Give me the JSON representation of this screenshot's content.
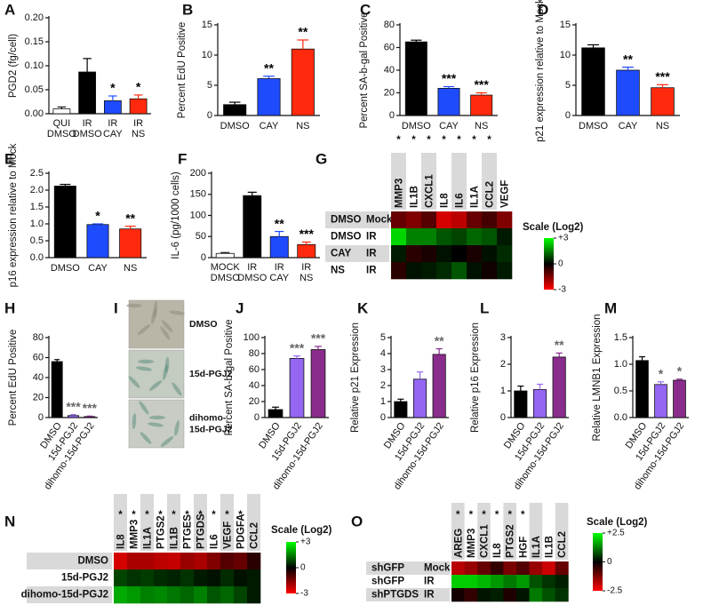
{
  "chart_data": [
    {
      "type": "bar",
      "panel": "A",
      "ylabel": "PGD2 (fg/cell)",
      "categories": [
        [
          "QUI",
          "DMSO"
        ],
        [
          "IR",
          "DMSO"
        ],
        [
          "IR",
          "CAY"
        ],
        [
          "IR",
          "NS"
        ]
      ],
      "values": [
        0.01,
        0.087,
        0.027,
        0.031
      ],
      "errors": [
        0.004,
        0.028,
        0.01,
        0.008
      ],
      "colors": [
        "#ffffff",
        "#000000",
        "#1f4bff",
        "#ff2a0d"
      ],
      "annotations": [
        null,
        null,
        "*",
        "*"
      ],
      "annotation_color": "#000000",
      "ylim": [
        0,
        0.2
      ],
      "yticks": [
        {
          "value": 0,
          "label": "0.00"
        },
        {
          "value": 0.05,
          "label": "0.05"
        },
        {
          "value": 0.1,
          "label": "0.10"
        },
        {
          "value": 0.15,
          "label": "0.15"
        },
        {
          "value": 0.2,
          "label": "0.20"
        }
      ]
    },
    {
      "type": "bar",
      "panel": "B",
      "ylabel": "Percent EdU Positive",
      "categories": [
        "DMSO",
        "CAY",
        "NS"
      ],
      "values": [
        1.8,
        6.1,
        11
      ],
      "errors": [
        0.4,
        0.4,
        1.5
      ],
      "colors": [
        "#000000",
        "#1f4bff",
        "#ff2a0d"
      ],
      "annotations": [
        null,
        "**",
        "**"
      ],
      "annotation_color": "#000000",
      "ylim": [
        0,
        15
      ],
      "yticks": [
        0,
        5,
        10,
        15
      ]
    },
    {
      "type": "bar",
      "panel": "C",
      "ylabel": "Percent SA-b-gal Positive",
      "categories": [
        "DMSO",
        "CAY",
        "NS"
      ],
      "values": [
        65,
        24,
        18
      ],
      "errors": [
        1.5,
        1.5,
        2
      ],
      "colors": [
        "#000000",
        "#1f4bff",
        "#ff2a0d"
      ],
      "annotations": [
        null,
        "***",
        "***"
      ],
      "annotation_color": "#000000",
      "ylim": [
        0,
        80
      ],
      "yticks": [
        0,
        20,
        40,
        60,
        80
      ]
    },
    {
      "type": "bar",
      "panel": "D",
      "ylabel": "p21 expression relative to Mock",
      "categories": [
        "DMSO",
        "CAY",
        "NS"
      ],
      "values": [
        11.2,
        7.5,
        4.6
      ],
      "errors": [
        0.5,
        0.5,
        0.5
      ],
      "colors": [
        "#000000",
        "#1f4bff",
        "#ff2a0d"
      ],
      "annotations": [
        null,
        "**",
        "***"
      ],
      "annotation_color": "#000000",
      "ylim": [
        0,
        15
      ],
      "yticks": [
        0,
        5,
        10,
        15
      ]
    },
    {
      "type": "bar",
      "panel": "E",
      "ylabel": "p16 expression relative to Mock",
      "categories": [
        "DMSO",
        "CAY",
        "NS"
      ],
      "values": [
        2.12,
        0.98,
        0.85
      ],
      "errors": [
        0.05,
        0.02,
        0.08
      ],
      "colors": [
        "#000000",
        "#1f4bff",
        "#ff2a0d"
      ],
      "annotations": [
        null,
        "*",
        "**"
      ],
      "annotation_color": "#000000",
      "ylim": [
        0,
        2.5
      ],
      "yticks": [
        {
          "value": 0,
          "label": "0.0"
        },
        {
          "value": 0.5,
          "label": "0.5"
        },
        {
          "value": 1,
          "label": "1.0"
        },
        {
          "value": 1.5,
          "label": "1.5"
        },
        {
          "value": 2,
          "label": "2.0"
        },
        {
          "value": 2.5,
          "label": "2.5"
        }
      ]
    },
    {
      "type": "bar",
      "panel": "F",
      "ylabel": "IL-6 (pg/1000 cells)",
      "categories": [
        [
          "MOCK",
          "DMSO"
        ],
        [
          "IR",
          "DMSO"
        ],
        [
          "IR",
          "CAY"
        ],
        [
          "IR",
          "NS"
        ]
      ],
      "values": [
        10,
        147,
        50,
        31
      ],
      "errors": [
        2,
        8,
        12,
        6
      ],
      "colors": [
        "#ffffff",
        "#000000",
        "#1f4bff",
        "#ff2a0d"
      ],
      "annotations": [
        null,
        null,
        "**",
        "***"
      ],
      "annotation_color": "#000000",
      "ylim": [
        0,
        200
      ],
      "yticks": [
        0,
        50,
        100,
        150,
        200
      ]
    },
    {
      "type": "heatmap",
      "panel": "G",
      "scale_title": "Scale (Log2)",
      "columns": [
        "MMP3",
        "IL1B",
        "CXCL1",
        "IL8",
        "IL6",
        "IL1A",
        "CCL2",
        "VEGF"
      ],
      "annotations": [
        "*",
        "*",
        "*",
        "*",
        "*",
        "*",
        "*",
        null
      ],
      "rows": [
        [
          "DMSO",
          "Mock"
        ],
        [
          "DMSO",
          "IR"
        ],
        [
          "CAY",
          "IR"
        ],
        [
          "NS",
          "IR"
        ]
      ],
      "values": [
        [
          -1.2,
          -1.5,
          -1,
          -2.5,
          -2.2,
          -1.2,
          -0.8,
          -1.5
        ],
        [
          2.5,
          1.5,
          1.5,
          1,
          0.8,
          1.2,
          1,
          0.3
        ],
        [
          0.3,
          -0.5,
          -0.3,
          0.2,
          0,
          -0.3,
          0.2,
          0.5
        ],
        [
          -0.5,
          0.2,
          0.3,
          0.5,
          1,
          0.2,
          -0.2,
          0.3
        ]
      ],
      "vlim": [
        -3,
        3
      ],
      "scale_ticks": [
        {
          "value": 3,
          "label": "+3"
        },
        0,
        -3
      ]
    },
    {
      "type": "bar",
      "panel": "H",
      "ylabel": "Percent EdU Positive",
      "categories": [
        "DMSO",
        "15d-PGJ2",
        "dihomo-15d-PGJ2"
      ],
      "values": [
        56,
        2,
        1
      ],
      "errors": [
        2,
        1,
        0.5
      ],
      "colors": [
        "#000000",
        "#9466f2",
        "#8a2c8c"
      ],
      "annotations": [
        null,
        "***",
        "***"
      ],
      "annotation_color": "#666666",
      "ylim": [
        0,
        80
      ],
      "yticks": [
        0,
        20,
        40,
        60,
        80
      ]
    },
    {
      "type": "image",
      "panel": "I",
      "labels": [
        [
          "DMSO"
        ],
        [
          "15d-PGJ2"
        ],
        [
          "dihomo-",
          "15d-PGJ2"
        ]
      ]
    },
    {
      "type": "bar",
      "panel": "J",
      "ylabel": "Percent SA-b-gal Positive",
      "categories": [
        "DMSO",
        "15d-PGJ2",
        "dihomo-15d-PGJ2"
      ],
      "values": [
        10,
        74,
        85
      ],
      "errors": [
        3,
        3,
        4
      ],
      "colors": [
        "#000000",
        "#9466f2",
        "#8a2c8c"
      ],
      "annotations": [
        null,
        "***",
        "***"
      ],
      "annotation_color": "#666666",
      "ylim": [
        0,
        100
      ],
      "yticks": [
        0,
        20,
        40,
        60,
        80,
        100
      ]
    },
    {
      "type": "bar",
      "panel": "K",
      "ylabel": "Relative p21 Expression",
      "categories": [
        "DMSO",
        "15d-PGJ2",
        "dihomo-15d-PGJ2"
      ],
      "values": [
        1,
        2.4,
        3.95
      ],
      "errors": [
        0.15,
        0.45,
        0.35
      ],
      "colors": [
        "#000000",
        "#9466f2",
        "#8a2c8c"
      ],
      "annotations": [
        null,
        null,
        "**"
      ],
      "annotation_color": "#666666",
      "ylim": [
        0,
        5
      ],
      "yticks": [
        0,
        1,
        2,
        3,
        4,
        5
      ]
    },
    {
      "type": "bar",
      "panel": "L",
      "ylabel": "Relative p16 Expression",
      "categories": [
        "DMSO",
        "15d-PGJ2",
        "dihomo-15d-PGJ2"
      ],
      "values": [
        1,
        1.05,
        2.27
      ],
      "errors": [
        0.18,
        0.2,
        0.15
      ],
      "colors": [
        "#000000",
        "#9466f2",
        "#8a2c8c"
      ],
      "annotations": [
        null,
        null,
        "**"
      ],
      "annotation_color": "#666666",
      "ylim": [
        0,
        3
      ],
      "yticks": [
        0,
        1,
        2,
        3
      ]
    },
    {
      "type": "bar",
      "panel": "M",
      "ylabel": "Relative LMNB1 Expression",
      "categories": [
        "DMSO",
        "15d-PGJ2",
        "dihomo-15d-PGJ2"
      ],
      "values": [
        1.07,
        0.62,
        0.7
      ],
      "errors": [
        0.07,
        0.05,
        0.02
      ],
      "colors": [
        "#000000",
        "#9466f2",
        "#8a2c8c"
      ],
      "annotations": [
        null,
        "*",
        "*"
      ],
      "annotation_color": "#666666",
      "ylim": [
        0,
        1.5
      ],
      "yticks": [
        {
          "value": 0,
          "label": "0.0"
        },
        {
          "value": 0.5,
          "label": "0.5"
        },
        {
          "value": 1,
          "label": "1.0"
        },
        {
          "value": 1.5,
          "label": "1.5"
        }
      ]
    },
    {
      "type": "heatmap",
      "panel": "N",
      "scale_title": "Scale (Log2)",
      "columns": [
        "IL8",
        "MMP3",
        "IL1A",
        "PTGS2",
        "IL1B",
        "PTGES",
        "PTGDS",
        "IL6",
        "VEGF",
        "PDGFA",
        "CCL2"
      ],
      "annotations": [
        "*",
        "*",
        "*",
        "*",
        "*",
        "*",
        "*",
        "*",
        "*",
        "*",
        null
      ],
      "rows": [
        [
          "DMSO"
        ],
        [
          "15d-PGJ2"
        ],
        [
          "dihomo-15d-PGJ2"
        ]
      ],
      "values": [
        [
          -2.5,
          -2,
          -2,
          -2.2,
          -2.3,
          -1.8,
          -2,
          -1.5,
          -1,
          -1.2,
          -0.5
        ],
        [
          0.8,
          0.6,
          0.7,
          0.5,
          0.4,
          0.6,
          0.3,
          0.2,
          0.5,
          0.2,
          0.3
        ],
        [
          2,
          1.8,
          1.5,
          1.6,
          1.4,
          1.2,
          1.5,
          1,
          1.2,
          0.8,
          0.3
        ]
      ],
      "vlim": [
        -3,
        3
      ],
      "scale_ticks": [
        {
          "value": 3,
          "label": "+3"
        },
        0,
        -3
      ]
    },
    {
      "type": "heatmap",
      "panel": "O",
      "scale_title": "Scale (Log2)",
      "columns": [
        "AREG",
        "MMP3",
        "CXCL1",
        "IL8",
        "PTGS2",
        "HGF",
        "IL1A",
        "IL1B",
        "CCL2"
      ],
      "annotations": [
        "*",
        "*",
        "*",
        "*",
        "*",
        "*",
        null,
        null,
        null
      ],
      "rows": [
        [
          "shGFP",
          "Mock"
        ],
        [
          "shGFP",
          "IR"
        ],
        [
          "shPTGDS",
          "IR"
        ]
      ],
      "values": [
        [
          -1.8,
          -1.5,
          -1,
          -0.5,
          -1.2,
          -0.8,
          -1.5,
          -2,
          -1
        ],
        [
          2,
          2,
          1.8,
          1.5,
          1.2,
          1.5,
          0.8,
          0.5,
          0.3
        ],
        [
          -0.2,
          -0.5,
          0.2,
          0.3,
          -0.3,
          0.2,
          1.2,
          0.8,
          0.5
        ]
      ],
      "vlim": [
        -2.5,
        2.5
      ],
      "scale_ticks": [
        {
          "value": 2.5,
          "label": "+2.5"
        },
        0,
        {
          "value": -2.5,
          "label": "-2.5"
        }
      ]
    }
  ]
}
